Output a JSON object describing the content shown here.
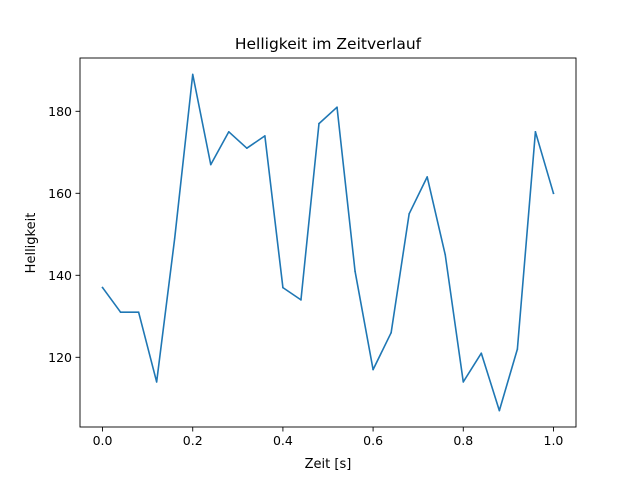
{
  "chart_data": {
    "type": "line",
    "title": "Helligkeit im Zeitverlauf",
    "xlabel": "Zeit [s]",
    "ylabel": "Helligkeit",
    "xlim": [
      -0.05,
      1.05
    ],
    "ylim": [
      103,
      193
    ],
    "xticks": [
      0.0,
      0.2,
      0.4,
      0.6,
      0.8,
      1.0
    ],
    "xtick_labels": [
      "0.0",
      "0.2",
      "0.4",
      "0.6",
      "0.8",
      "1.0"
    ],
    "yticks": [
      120,
      140,
      160,
      180
    ],
    "ytick_labels": [
      "120",
      "140",
      "160",
      "180"
    ],
    "grid": false,
    "legend": false,
    "series": [
      {
        "color": "#1f77b4",
        "x": [
          0.0,
          0.04,
          0.08,
          0.12,
          0.16,
          0.2,
          0.24,
          0.28,
          0.32,
          0.36,
          0.4,
          0.44,
          0.48,
          0.52,
          0.56,
          0.6,
          0.64,
          0.68,
          0.72,
          0.76,
          0.8,
          0.84,
          0.88,
          0.92,
          0.96,
          1.0
        ],
        "y": [
          137,
          131,
          131,
          114,
          149,
          189,
          167,
          175,
          171,
          174,
          137,
          134,
          177,
          181,
          141,
          117,
          126,
          155,
          164,
          145,
          114,
          121,
          107,
          122,
          175,
          160
        ]
      }
    ]
  }
}
